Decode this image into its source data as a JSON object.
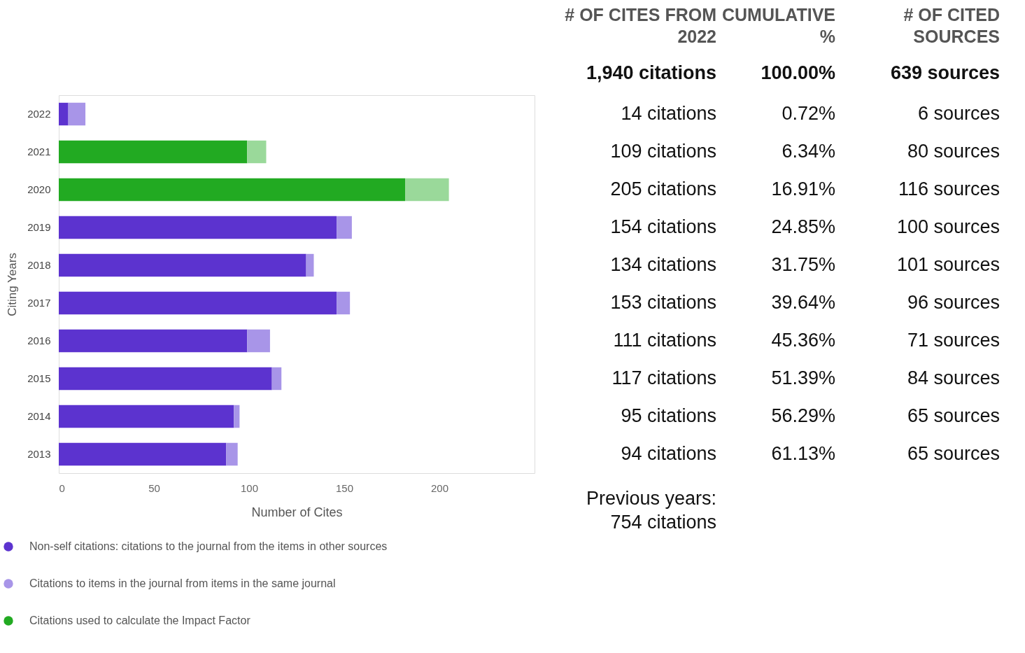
{
  "chart_data": [
    {
      "type": "bar",
      "orientation": "horizontal",
      "stacked": true,
      "categories": [
        "2022",
        "2021",
        "2020",
        "2019",
        "2018",
        "2017",
        "2016",
        "2015",
        "2014",
        "2013"
      ],
      "series": [
        {
          "name": "Non-self citations: citations to the journal from the items in other sources",
          "color": "#5c33cf",
          "values": [
            5,
            null,
            null,
            146,
            130,
            146,
            99,
            112,
            92,
            88
          ]
        },
        {
          "name": "Citations used to calculate the Impact Factor",
          "color": "#22aa22",
          "values": [
            null,
            99,
            182,
            null,
            null,
            null,
            null,
            null,
            null,
            null
          ]
        },
        {
          "name": "Citations to items in the journal from items in the same journal",
          "color": "#a895e8",
          "colors": [
            "#a895e8",
            "#9ad99a",
            "#9ad99a",
            "#a895e8",
            "#a895e8",
            "#a895e8",
            "#a895e8",
            "#a895e8",
            "#a895e8",
            "#a895e8"
          ],
          "values": [
            9,
            10,
            23,
            8,
            4,
            7,
            12,
            5,
            3,
            6
          ]
        }
      ],
      "xlim": [
        0,
        250
      ],
      "xticks": [
        0,
        50,
        100,
        150,
        200
      ],
      "xlabel": "Number of Cites",
      "ylabel": "Citing Years",
      "grid": false,
      "legend": "bottom"
    },
    {
      "type": "other",
      "categories": [
        "# OF CITES FROM 2022",
        "CUMULATIVE %",
        "# OF CITED SOURCES"
      ],
      "cell_labels": [
        [
          "1,940 citations",
          "100.00%",
          "639 sources"
        ],
        [
          "14 citations",
          "0.72%",
          "6 sources"
        ],
        [
          "109 citations",
          "6.34%",
          "80 sources"
        ],
        [
          "205 citations",
          "16.91%",
          "116 sources"
        ],
        [
          "154 citations",
          "24.85%",
          "100 sources"
        ],
        [
          "134 citations",
          "31.75%",
          "101 sources"
        ],
        [
          "153 citations",
          "39.64%",
          "96 sources"
        ],
        [
          "111 citations",
          "45.36%",
          "71 sources"
        ],
        [
          "117 citations",
          "51.39%",
          "84 sources"
        ],
        [
          "95 citations",
          "56.29%",
          "65 sources"
        ],
        [
          "94 citations",
          "61.13%",
          "65 sources"
        ]
      ],
      "annotations": [
        "Previous years:",
        "754 citations"
      ]
    }
  ]
}
